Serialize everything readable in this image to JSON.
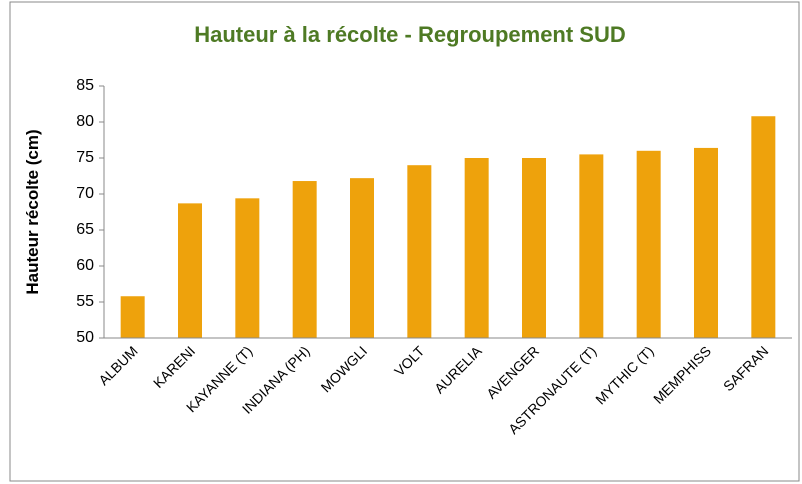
{
  "chart_data": {
    "type": "bar",
    "title": "Hauteur à la récolte - Regroupement SUD",
    "y_label": "Hauteur récolte  (cm)",
    "categories": [
      "ALBUM",
      "KARENI",
      "KAYANNE (T)",
      "INDIANA (PH)",
      "MOWGLI",
      "VOLT",
      "AURELIA",
      "AVENGER",
      "ASTRONAUTE (T)",
      "MYTHIC (T)",
      "MEMPHISS",
      "SAFRAN"
    ],
    "values": [
      55.8,
      68.7,
      69.4,
      71.8,
      72.2,
      74,
      75,
      75,
      75.5,
      76,
      76.4,
      80.8
    ],
    "color": "#eea20c",
    "ylim": [
      50,
      85
    ],
    "yticks": [
      50,
      55,
      60,
      65,
      70,
      75,
      80,
      85
    ],
    "grid": false
  }
}
